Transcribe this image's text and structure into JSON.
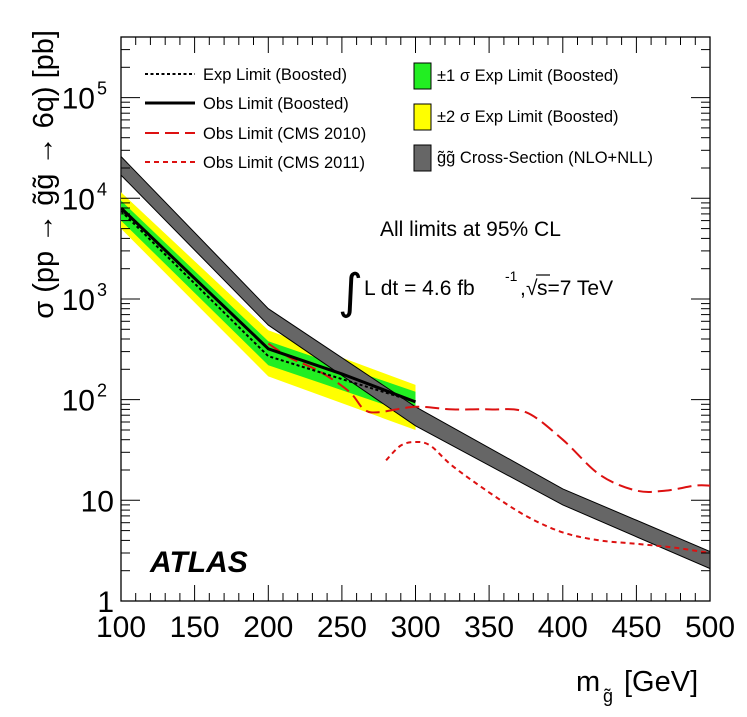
{
  "chart_data": {
    "type": "line",
    "xlabel": "m",
    "xlabel_sub": "g̃",
    "xlabel_unit": "[GeV]",
    "ylabel": "σ (pp → g̃g̃ → 6q) [pb]",
    "xlim": [
      100,
      500
    ],
    "ylim": [
      1,
      400000
    ],
    "y_scale": "log",
    "x_ticks": [
      "100",
      "150",
      "200",
      "250",
      "300",
      "350",
      "400",
      "450",
      "500"
    ],
    "y_ticks": [
      {
        "value": 1,
        "base": "1",
        "exp": ""
      },
      {
        "value": 10,
        "base": "10",
        "exp": ""
      },
      {
        "value": 100,
        "base": "10",
        "exp": "2"
      },
      {
        "value": 1000,
        "base": "10",
        "exp": "3"
      },
      {
        "value": 10000,
        "base": "10",
        "exp": "4"
      },
      {
        "value": 100000,
        "base": "10",
        "exp": "5"
      }
    ],
    "annotations": {
      "atlas": "ATLAS",
      "cl": "All limits at 95% CL",
      "lumi_integral": "∫",
      "lumi_text": "L dt = 4.6 fb",
      "lumi_exp": "-1",
      "lumi_sep": ",",
      "sqrt_sym": "√",
      "energy": "s=7 TeV"
    },
    "legend": [
      {
        "key": "exp",
        "label": "Exp Limit (Boosted)",
        "style": "dotted",
        "color": "#000000"
      },
      {
        "key": "obs",
        "label": "Obs Limit (Boosted)",
        "style": "solid",
        "color": "#000000"
      },
      {
        "key": "cms2010",
        "label": "Obs Limit (CMS 2010)",
        "style": "long-dash",
        "color": "#dd1111"
      },
      {
        "key": "cms2011",
        "label": "Obs Limit (CMS 2011)",
        "style": "short-dash",
        "color": "#dd1111"
      },
      {
        "key": "band1",
        "label": "±1 σ Exp Limit (Boosted)",
        "style": "fill",
        "color": "#22ee22"
      },
      {
        "key": "band2",
        "label": "±2 σ Exp Limit (Boosted)",
        "style": "fill",
        "color": "#ffff00"
      },
      {
        "key": "xsec",
        "label": "g̃g̃ Cross-Section (NLO+NLL)",
        "style": "fill",
        "color": "#666666"
      }
    ],
    "series": [
      {
        "key": "exp",
        "x": [
          100,
          200,
          300
        ],
        "y": [
          7500,
          270,
          95
        ]
      },
      {
        "key": "obs",
        "x": [
          100,
          200,
          250,
          300
        ],
        "y": [
          8000,
          320,
          180,
          95
        ]
      },
      {
        "key": "cms2010",
        "x": [
          200,
          215,
          235,
          255,
          265,
          275,
          300,
          325,
          350,
          375,
          400,
          425,
          450,
          470,
          490,
          500
        ],
        "y": [
          360,
          260,
          190,
          120,
          80,
          75,
          85,
          80,
          80,
          75,
          40,
          18,
          12.5,
          12.5,
          14,
          14
        ]
      },
      {
        "key": "cms2011",
        "x": [
          280,
          290,
          300,
          310,
          325,
          350,
          375,
          400,
          425,
          450,
          475,
          500
        ],
        "y": [
          25,
          35,
          38,
          35,
          22,
          12,
          7,
          4.8,
          4,
          3.7,
          3.4,
          3.0
        ]
      },
      {
        "key": "band1",
        "x": [
          100,
          200,
          300
        ],
        "y_low": [
          6000,
          220,
          70
        ],
        "y_high": [
          9500,
          380,
          120
        ]
      },
      {
        "key": "band2",
        "x": [
          100,
          200,
          300
        ],
        "y_low": [
          5000,
          170,
          50
        ],
        "y_high": [
          11500,
          490,
          140
        ]
      },
      {
        "key": "xsec",
        "x": [
          100,
          200,
          300,
          400,
          500
        ],
        "y_low": [
          17000,
          550,
          55,
          9,
          2.1
        ],
        "y_high": [
          26000,
          800,
          85,
          13,
          3.1
        ]
      }
    ]
  }
}
